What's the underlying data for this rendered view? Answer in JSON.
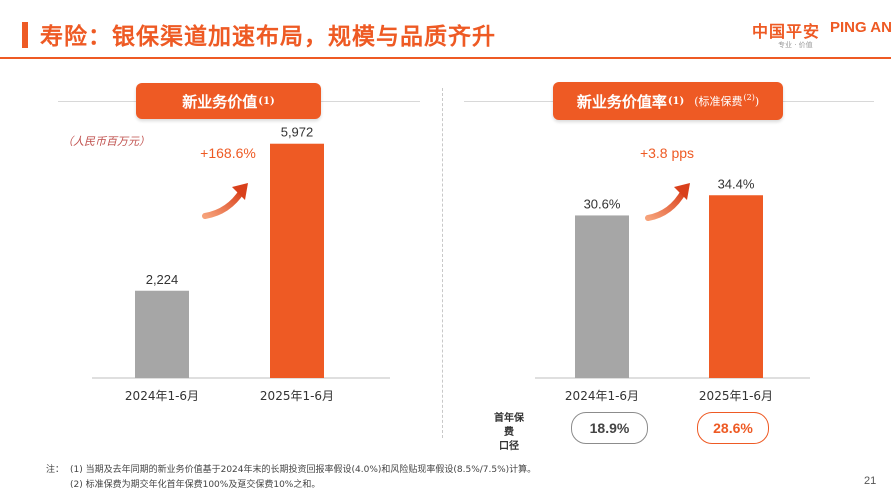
{
  "header": {
    "title": "寿险：银保渠道加速布局，规模与品质齐升",
    "logo_cn": "中国平安",
    "logo_en": "PING AN",
    "logo_tagline": "专业 · 价值"
  },
  "colors": {
    "accent": "#ee5a24",
    "grey_bar": "#a6a6a6"
  },
  "left_panel": {
    "title": "新业务价值",
    "title_sup": "(1)",
    "unit": "（人民币百万元）"
  },
  "right_panel": {
    "title": "新业务价值率",
    "title_sup": "(1)",
    "title_extra": "(标准保费",
    "title_extra_sup": "(2)",
    "title_extra_close": ")"
  },
  "chart_data": [
    {
      "type": "bar",
      "title": "新业务价值",
      "categories": [
        "2024年1-6月",
        "2025年1-6月"
      ],
      "values": [
        2224,
        5972
      ],
      "value_labels": [
        "2,224",
        "5,972"
      ],
      "growth_label": "+168.6%",
      "ylim": [
        0,
        6500
      ]
    },
    {
      "type": "bar",
      "title": "新业务价值率",
      "categories": [
        "2024年1-6月",
        "2025年1-6月"
      ],
      "values": [
        30.6,
        34.4
      ],
      "value_labels": [
        "30.6%",
        "34.4%"
      ],
      "growth_label": "+3.8 pps",
      "ylim": [
        0,
        48
      ]
    }
  ],
  "first_year_premium": {
    "label_line1": "首年保费",
    "label_line2": "口径",
    "values": [
      "18.9%",
      "28.6%"
    ]
  },
  "notes": {
    "prefix": "注：",
    "note1": "(1)  当期及去年同期的新业务价值基于2024年末的长期投资回报率假设(4.0%)和风险贴现率假设(8.5%/7.5%)计算。",
    "note2": "(2)  标准保费为期交年化首年保费100%及趸交保费10%之和。"
  },
  "page_number": "21"
}
